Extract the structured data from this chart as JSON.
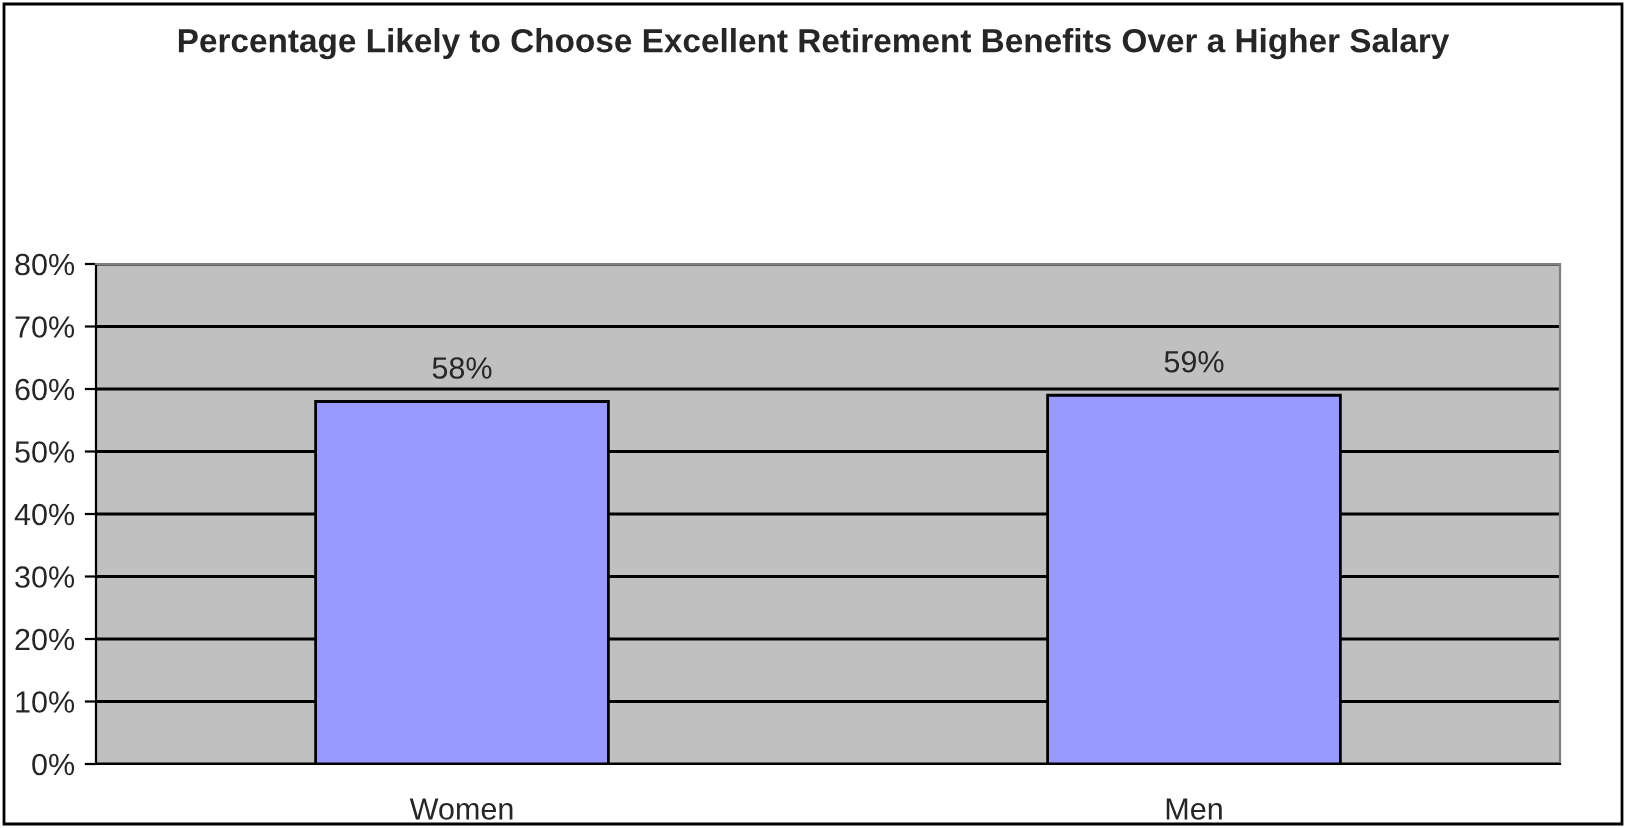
{
  "chart_data": {
    "type": "bar",
    "title": "Percentage Likely to Choose Excellent Retirement Benefits Over a Higher Salary",
    "categories": [
      "Women",
      "Men"
    ],
    "series": [
      {
        "color": "#9999ff",
        "values": [
          58,
          59
        ],
        "value_labels": [
          "58%",
          "59%"
        ]
      }
    ],
    "ylim": [
      0,
      80
    ],
    "yticks": [
      {
        "value": 0,
        "label": "0%"
      },
      {
        "value": 10,
        "label": "10%"
      },
      {
        "value": 20,
        "label": "20%"
      },
      {
        "value": 30,
        "label": "30%"
      },
      {
        "value": 40,
        "label": "40%"
      },
      {
        "value": 50,
        "label": "50%"
      },
      {
        "value": 60,
        "label": "60%"
      },
      {
        "value": 70,
        "label": "70%"
      },
      {
        "value": 80,
        "label": "80%"
      }
    ],
    "grid": "y",
    "legend": false
  }
}
